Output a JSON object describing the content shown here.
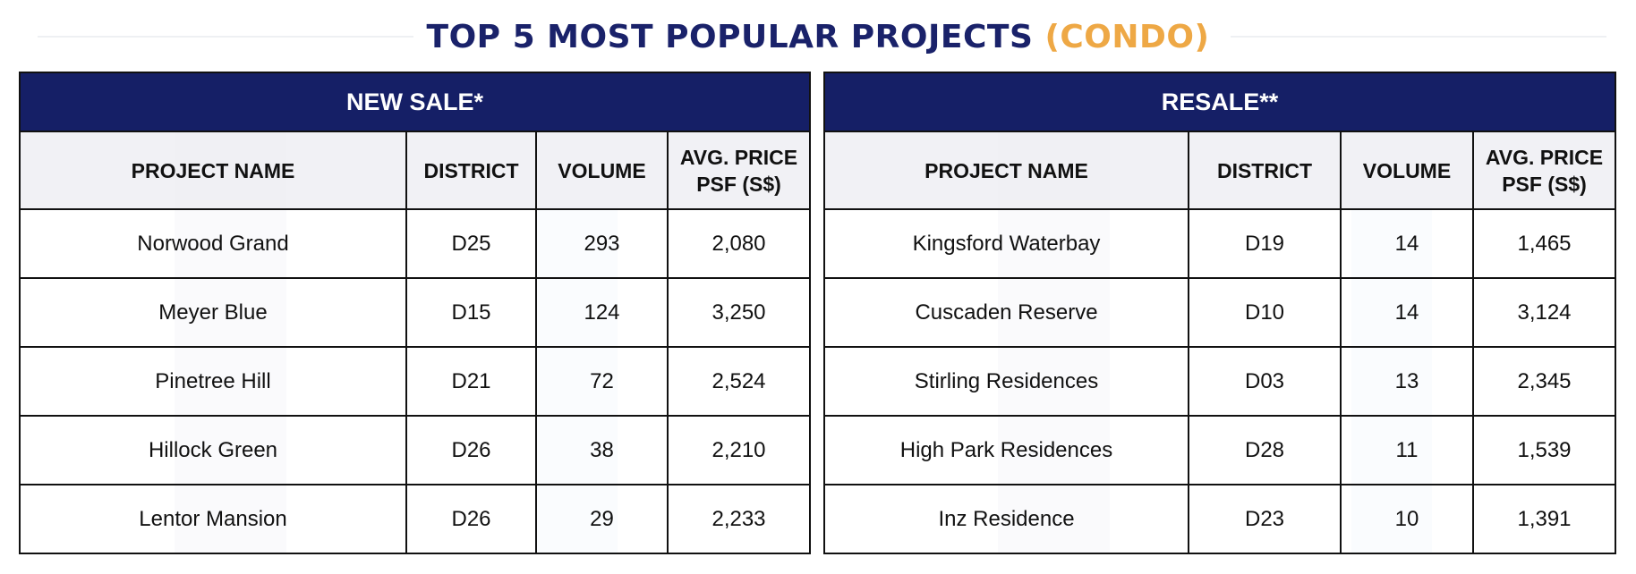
{
  "title": {
    "main": "TOP 5 MOST POPULAR PROJECTS",
    "accent": "(CONDO)"
  },
  "colors": {
    "navy": "#151f66",
    "title_navy": "#1a226a",
    "accent_orange": "#eea845",
    "header_grey": "#eeeff3"
  },
  "columns": {
    "project": "PROJECT NAME",
    "district": "DISTRICT",
    "volume": "VOLUME",
    "price": "AVG. PRICE PSF (S$)"
  },
  "new_sale": {
    "heading": "NEW SALE*",
    "rows": [
      {
        "project": "Norwood Grand",
        "district": "D25",
        "volume": "293",
        "price": "2,080"
      },
      {
        "project": "Meyer Blue",
        "district": "D15",
        "volume": "124",
        "price": "3,250"
      },
      {
        "project": "Pinetree Hill",
        "district": "D21",
        "volume": "72",
        "price": "2,524"
      },
      {
        "project": "Hillock Green",
        "district": "D26",
        "volume": "38",
        "price": "2,210"
      },
      {
        "project": "Lentor Mansion",
        "district": "D26",
        "volume": "29",
        "price": "2,233"
      }
    ]
  },
  "resale": {
    "heading": "RESALE**",
    "rows": [
      {
        "project": "Kingsford Waterbay",
        "district": "D19",
        "volume": "14",
        "price": "1,465"
      },
      {
        "project": "Cuscaden Reserve",
        "district": "D10",
        "volume": "14",
        "price": "3,124"
      },
      {
        "project": "Stirling Residences",
        "district": "D03",
        "volume": "13",
        "price": "2,345"
      },
      {
        "project": "High Park Residences",
        "district": "D28",
        "volume": "11",
        "price": "1,539"
      },
      {
        "project": "Inz Residence",
        "district": "D23",
        "volume": "10",
        "price": "1,391"
      }
    ]
  }
}
